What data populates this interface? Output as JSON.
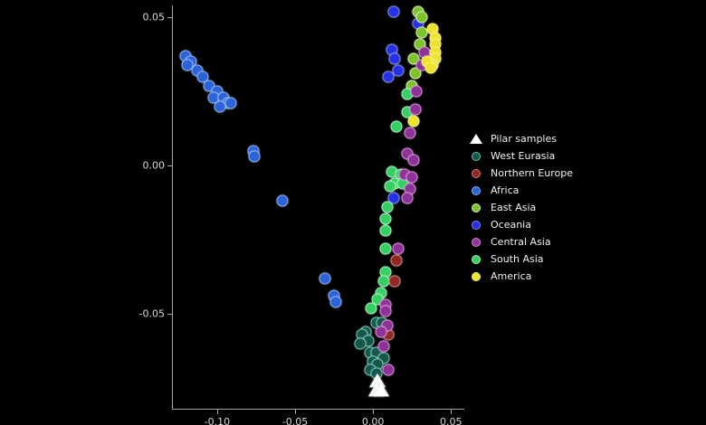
{
  "figure": {
    "background": "#000000",
    "axis_color": "#a8a8a8",
    "tick_label_color": "#d6d6d6"
  },
  "legend": {
    "items": [
      {
        "label": "Pilar samples",
        "marker": "triangle",
        "fill": "#ffffff",
        "stroke": "#e8e8e8"
      },
      {
        "label": "West Eurasia",
        "marker": "circle",
        "fill": "#17564a",
        "stroke": "#63c6ae"
      },
      {
        "label": "Northern Europe",
        "marker": "circle",
        "fill": "#8e2a23",
        "stroke": "#d07f72"
      },
      {
        "label": "Africa",
        "marker": "circle",
        "fill": "#2c63d9",
        "stroke": "#86aef2"
      },
      {
        "label": "East Asia",
        "marker": "circle",
        "fill": "#7dc32b",
        "stroke": "#d6ecac"
      },
      {
        "label": "Oceania",
        "marker": "circle",
        "fill": "#2431e4",
        "stroke": "#7b86f2"
      },
      {
        "label": "Central Asia",
        "marker": "circle",
        "fill": "#8d3397",
        "stroke": "#dd86dd"
      },
      {
        "label": "South Asia",
        "marker": "circle",
        "fill": "#36cf63",
        "stroke": "#a5efbb"
      },
      {
        "label": "America",
        "marker": "circle",
        "fill": "#eee32c",
        "stroke": "#f7f07a"
      }
    ]
  },
  "chart_data": {
    "type": "scatter",
    "title": "",
    "xlabel": "",
    "ylabel": "",
    "xlim": [
      -0.129,
      0.058
    ],
    "ylim": [
      -0.082,
      0.054
    ],
    "xticks": [
      -0.1,
      -0.05,
      0.0,
      0.05
    ],
    "xtick_labels": [
      "-0.10",
      "-0.05",
      "0.00",
      "0.05"
    ],
    "yticks": [
      0.05,
      0.0,
      -0.05
    ],
    "ytick_labels": [
      "0.05",
      "0.00",
      "-0.05"
    ],
    "grid": false,
    "legend_position": "right",
    "series": [
      {
        "name": "Pilar samples",
        "marker": "triangle",
        "fill": "#ffffff",
        "stroke": "#e8e8e8",
        "points": [
          [
            0.003,
            -0.073
          ],
          [
            0.002,
            -0.076
          ],
          [
            0.005,
            -0.076
          ]
        ]
      },
      {
        "name": "West Eurasia",
        "marker": "circle",
        "fill": "#17564a",
        "stroke": "#63c6ae",
        "points": [
          [
            0.002,
            -0.053
          ],
          [
            0.006,
            -0.053
          ],
          [
            -0.005,
            -0.056
          ],
          [
            -0.007,
            -0.057
          ],
          [
            -0.003,
            -0.059
          ],
          [
            -0.008,
            -0.06
          ],
          [
            -0.002,
            -0.063
          ],
          [
            0.002,
            -0.063
          ],
          [
            0.007,
            -0.065
          ],
          [
            0.0,
            -0.066
          ],
          [
            0.003,
            -0.067
          ],
          [
            -0.002,
            -0.069
          ],
          [
            0.002,
            -0.07
          ]
        ]
      },
      {
        "name": "Northern Europe",
        "marker": "circle",
        "fill": "#8e2a23",
        "stroke": "#d07f72",
        "points": [
          [
            0.015,
            -0.032
          ],
          [
            0.014,
            -0.039
          ],
          [
            0.01,
            -0.057
          ]
        ]
      },
      {
        "name": "Africa",
        "marker": "circle",
        "fill": "#2c63d9",
        "stroke": "#86aef2",
        "points": [
          [
            -0.12,
            0.037
          ],
          [
            -0.117,
            0.035
          ],
          [
            -0.119,
            0.034
          ],
          [
            -0.113,
            0.032
          ],
          [
            -0.109,
            0.03
          ],
          [
            -0.105,
            0.027
          ],
          [
            -0.1,
            0.025
          ],
          [
            -0.102,
            0.023
          ],
          [
            -0.096,
            0.023
          ],
          [
            -0.093,
            0.021
          ],
          [
            -0.098,
            0.02
          ],
          [
            -0.091,
            0.021
          ],
          [
            -0.077,
            0.005
          ],
          [
            -0.076,
            0.003
          ],
          [
            -0.058,
            -0.012
          ],
          [
            -0.031,
            -0.038
          ],
          [
            -0.025,
            -0.044
          ],
          [
            -0.024,
            -0.046
          ]
        ]
      },
      {
        "name": "East Asia",
        "marker": "circle",
        "fill": "#7dc32b",
        "stroke": "#d6ecac",
        "points": [
          [
            0.029,
            0.052
          ],
          [
            0.031,
            0.05
          ],
          [
            0.031,
            0.045
          ],
          [
            0.03,
            0.041
          ],
          [
            0.026,
            0.036
          ],
          [
            0.027,
            0.031
          ],
          [
            0.025,
            0.027
          ]
        ]
      },
      {
        "name": "Oceania",
        "marker": "circle",
        "fill": "#2431e4",
        "stroke": "#7b86f2",
        "points": [
          [
            0.013,
            0.052
          ],
          [
            0.029,
            0.048
          ],
          [
            0.012,
            0.039
          ],
          [
            0.014,
            0.036
          ],
          [
            0.016,
            0.032
          ],
          [
            0.01,
            0.03
          ],
          [
            0.013,
            -0.011
          ]
        ]
      },
      {
        "name": "Central Asia",
        "marker": "circle",
        "fill": "#8d3397",
        "stroke": "#dd86dd",
        "points": [
          [
            0.033,
            0.038
          ],
          [
            0.031,
            0.034
          ],
          [
            0.028,
            0.025
          ],
          [
            0.027,
            0.019
          ],
          [
            0.024,
            0.011
          ],
          [
            0.022,
            0.004
          ],
          [
            0.026,
            0.002
          ],
          [
            0.02,
            -0.003
          ],
          [
            0.025,
            -0.004
          ],
          [
            0.024,
            -0.008
          ],
          [
            0.022,
            -0.011
          ],
          [
            0.016,
            -0.028
          ],
          [
            0.008,
            -0.047
          ],
          [
            0.008,
            -0.049
          ],
          [
            0.009,
            -0.054
          ],
          [
            0.005,
            -0.056
          ],
          [
            0.007,
            -0.061
          ],
          [
            0.01,
            -0.069
          ]
        ]
      },
      {
        "name": "South Asia",
        "marker": "circle",
        "fill": "#36cf63",
        "stroke": "#a5efbb",
        "points": [
          [
            0.022,
            0.024
          ],
          [
            0.022,
            0.018
          ],
          [
            0.015,
            0.013
          ],
          [
            0.012,
            -0.002
          ],
          [
            0.018,
            -0.003
          ],
          [
            0.014,
            -0.006
          ],
          [
            0.019,
            -0.006
          ],
          [
            0.011,
            -0.007
          ],
          [
            0.009,
            -0.014
          ],
          [
            0.008,
            -0.018
          ],
          [
            0.008,
            -0.022
          ],
          [
            0.008,
            -0.028
          ],
          [
            0.008,
            -0.036
          ],
          [
            0.007,
            -0.039
          ],
          [
            0.005,
            -0.043
          ],
          [
            0.003,
            -0.045
          ],
          [
            -0.001,
            -0.048
          ]
        ]
      },
      {
        "name": "America",
        "marker": "circle",
        "fill": "#eee32c",
        "stroke": "#f7f07a",
        "points": [
          [
            0.038,
            0.046
          ],
          [
            0.04,
            0.043
          ],
          [
            0.04,
            0.041
          ],
          [
            0.04,
            0.038
          ],
          [
            0.04,
            0.036
          ],
          [
            0.038,
            0.034
          ],
          [
            0.035,
            0.035
          ],
          [
            0.037,
            0.033
          ],
          [
            0.026,
            0.015
          ]
        ]
      }
    ]
  }
}
